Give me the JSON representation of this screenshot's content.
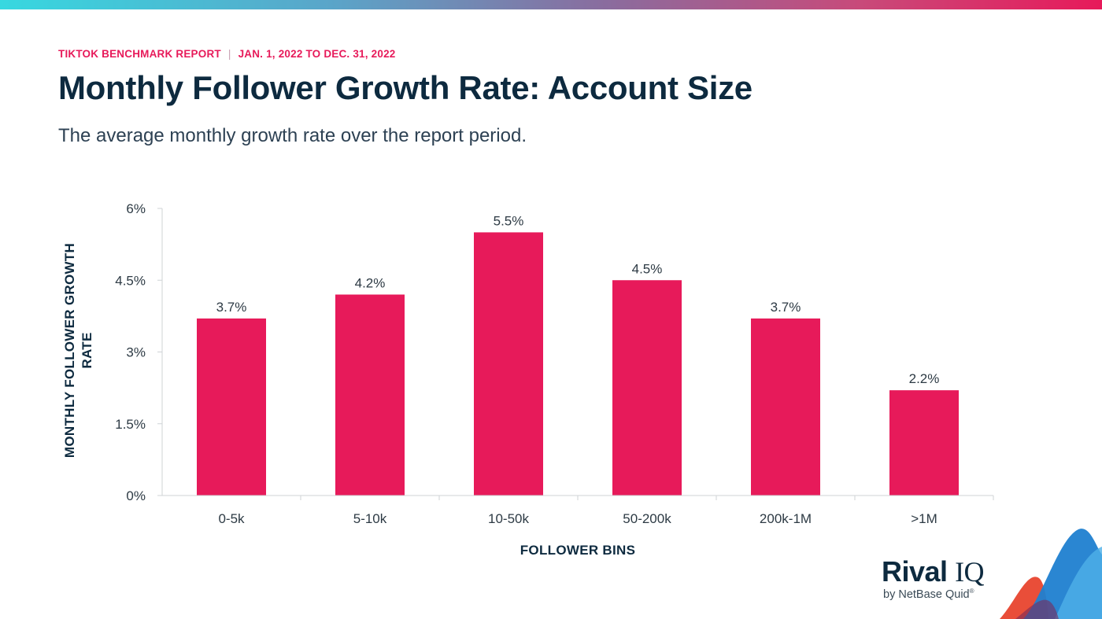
{
  "header": {
    "report": "TIKTOK BENCHMARK REPORT",
    "separator": "|",
    "period": "JAN. 1, 2022 TO DEC. 31, 2022",
    "title": "Monthly Follower Growth Rate: Account Size",
    "subtitle": "The average monthly growth rate over the report period."
  },
  "chart_data": {
    "type": "bar",
    "title": "Monthly Follower Growth Rate: Account Size",
    "subtitle": "The average monthly growth rate over the report period.",
    "xlabel": "FOLLOWER BINS",
    "ylabel": "MONTHLY FOLLOWER GROWTH RATE",
    "ylabel_lines": [
      "MONTHLY FOLLOWER GROWTH",
      "RATE"
    ],
    "categories": [
      "0-5k",
      "5-10k",
      "10-50k",
      "50-200k",
      "200k-1M",
      ">1M"
    ],
    "values": [
      3.7,
      4.2,
      5.5,
      4.5,
      3.7,
      2.2
    ],
    "data_labels": [
      "3.7%",
      "4.2%",
      "5.5%",
      "4.5%",
      "3.7%",
      "2.2%"
    ],
    "ylim": [
      0,
      6
    ],
    "yticks": [
      0,
      1.5,
      3,
      4.5,
      6
    ],
    "ytick_labels": [
      "0%",
      "1.5%",
      "3%",
      "4.5%",
      "6%"
    ],
    "grid": false,
    "legend": "none",
    "bar_color": "#e71a5a"
  },
  "logo": {
    "word_rival": "Rival",
    "word_iq": "IQ",
    "byline": "by NetBase Quid",
    "registered": "®"
  },
  "colors": {
    "accent": "#e71a5a",
    "title": "#0d2a3f"
  }
}
